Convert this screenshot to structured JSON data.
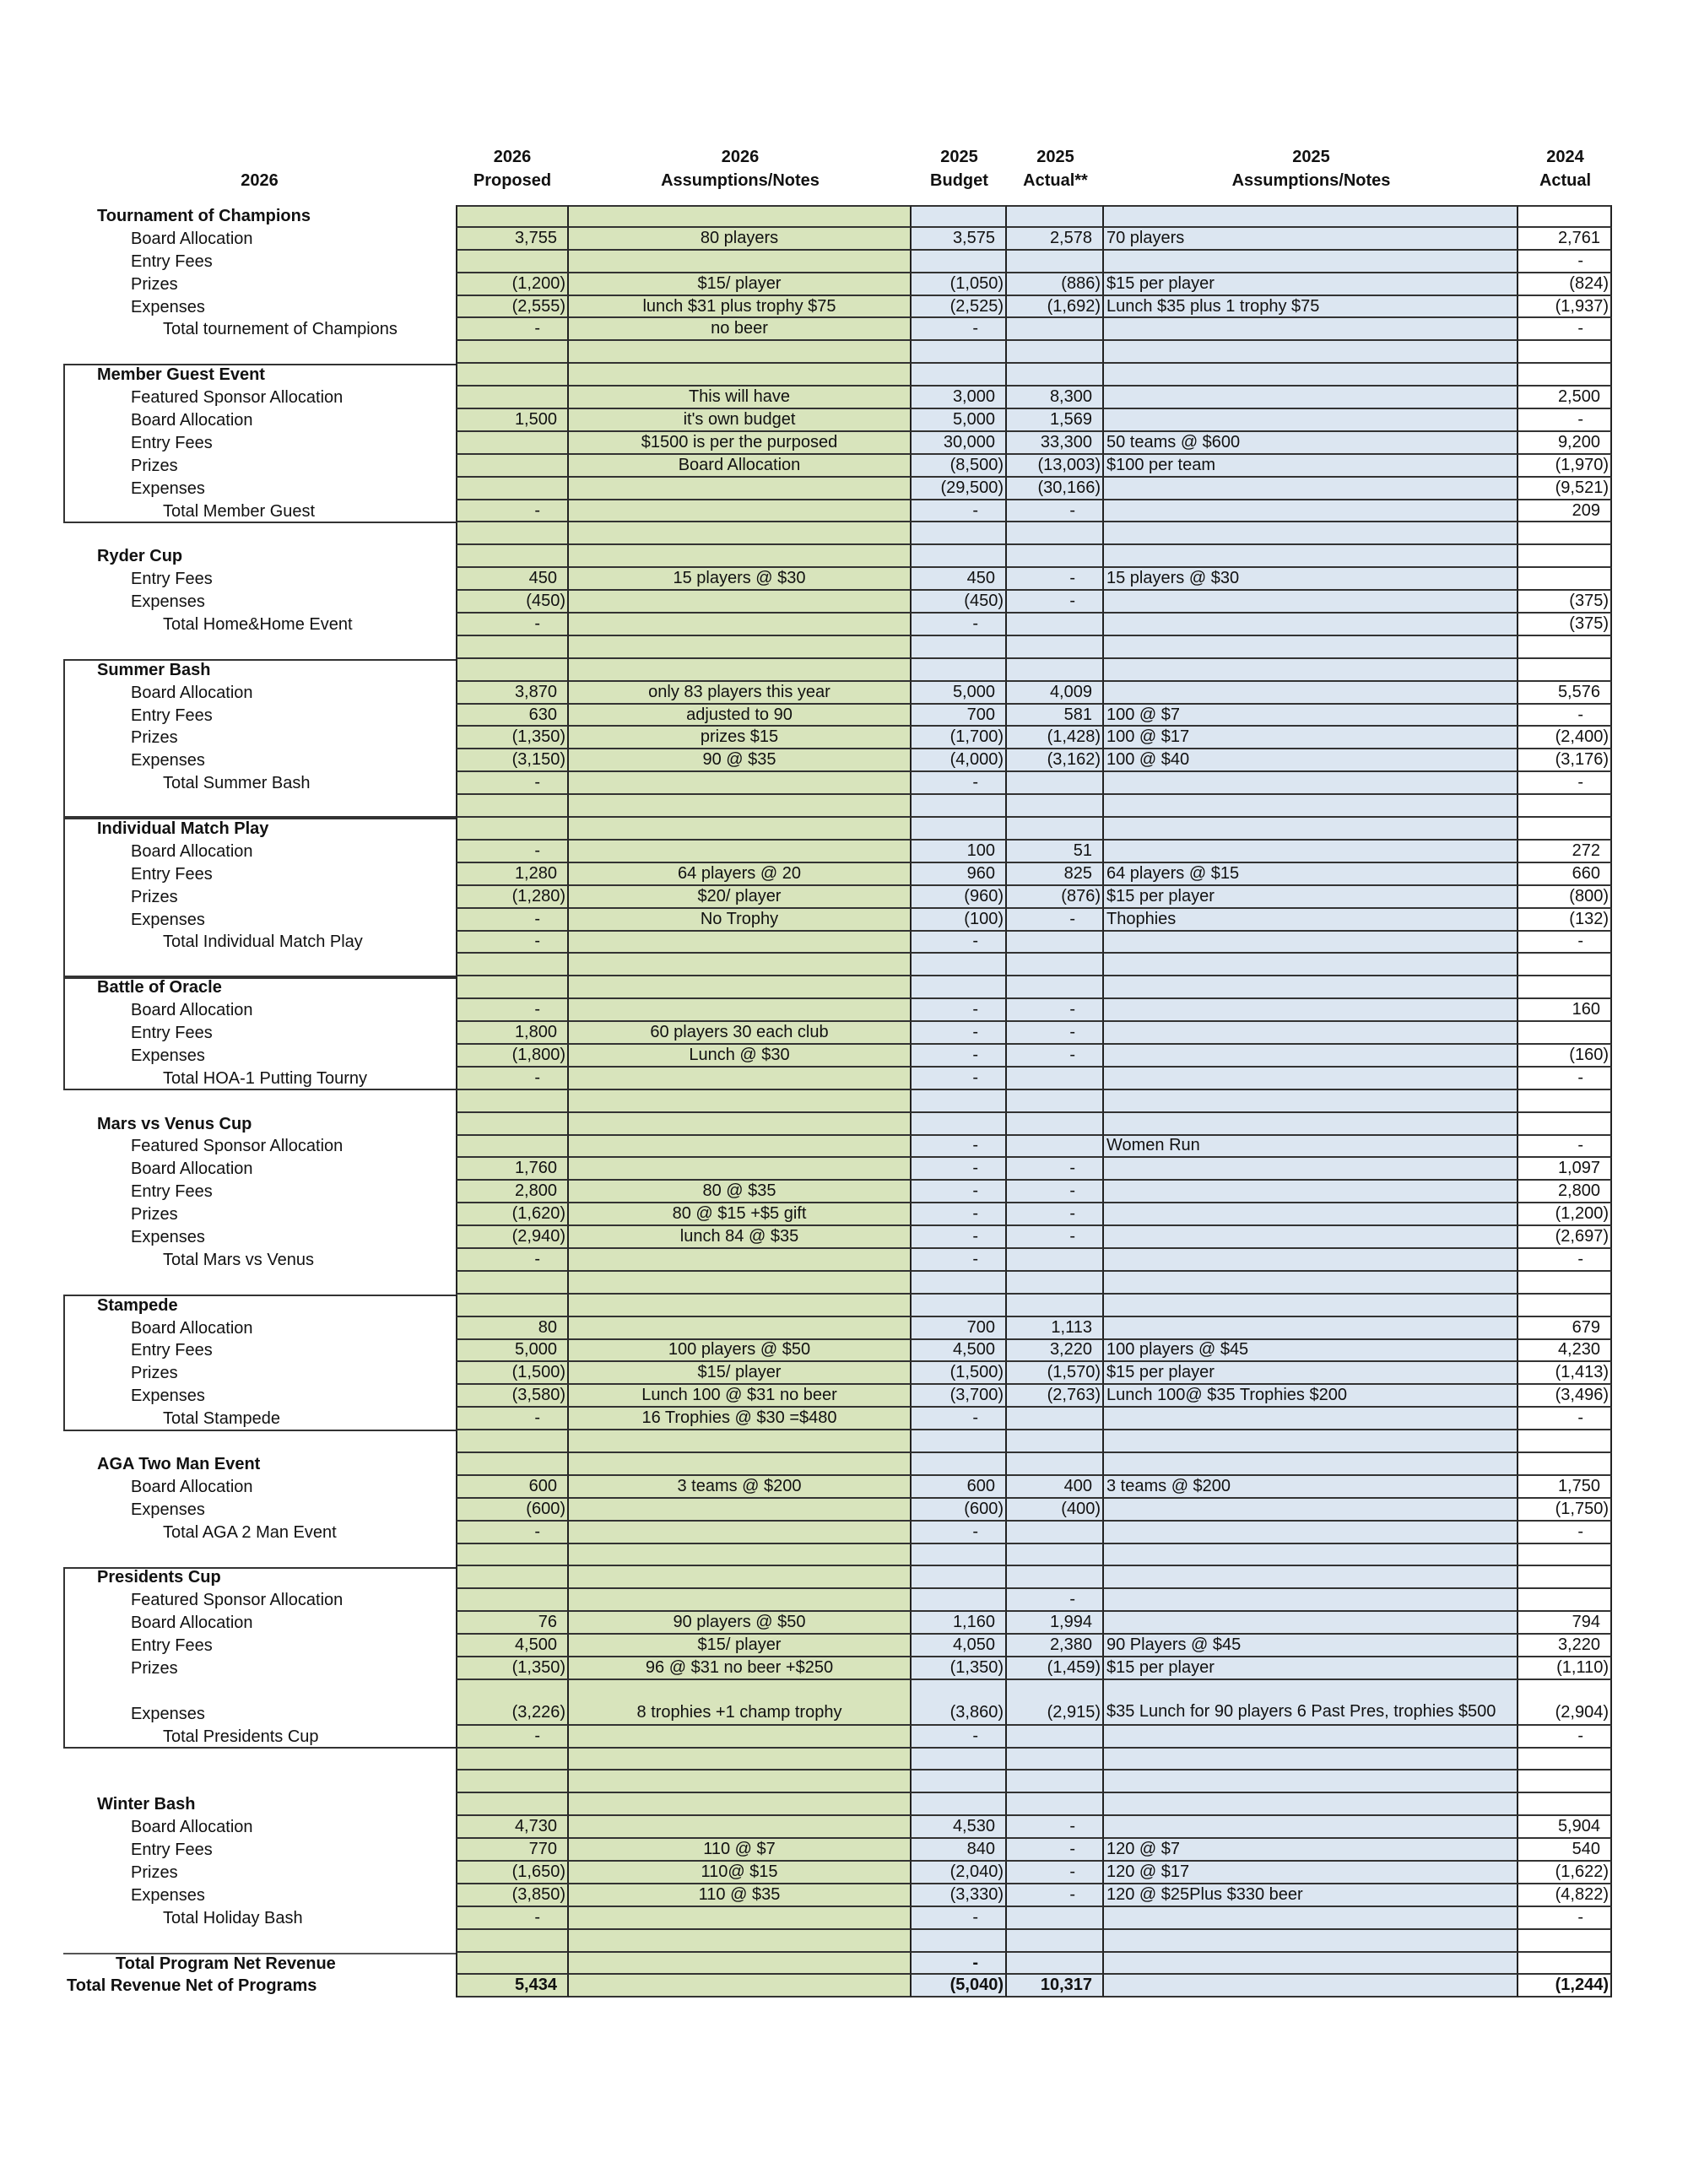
{
  "colors": {
    "proposed_fill": "#d8e4bc",
    "budget_fill": "#dce6f1",
    "actual_2024_fill": "#ffffff"
  },
  "header": [
    {
      "line1": "",
      "line2": "2026"
    },
    {
      "line1": "2026",
      "line2": "Proposed"
    },
    {
      "line1": "2026",
      "line2": "Assumptions/Notes"
    },
    {
      "line1": "2025",
      "line2": "Budget"
    },
    {
      "line1": "2025",
      "line2": "Actual**"
    },
    {
      "line1": "2025",
      "line2": "Assumptions/Notes"
    },
    {
      "line1": "2024",
      "line2": "Actual"
    }
  ],
  "rows": [
    {
      "type": "section",
      "label": "Tournament of Champions"
    },
    {
      "type": "item",
      "label": "Board Allocation",
      "p": "3,755",
      "pn": "80 players",
      "b": "3,575",
      "a": "2,578",
      "an": "70 players",
      "a24": "2,761"
    },
    {
      "type": "item",
      "label": "Entry  Fees",
      "a24": "-"
    },
    {
      "type": "item",
      "label": "Prizes",
      "p": "(1,200)",
      "pn": "$15/ player",
      "b": "(1,050)",
      "a": "(886)",
      "an": "$15 per player",
      "a24": "(824)"
    },
    {
      "type": "item",
      "label": "Expenses",
      "p": "(2,555)",
      "pn": "lunch $31 plus trophy $75",
      "b": "(2,525)",
      "a": "(1,692)",
      "an": "Lunch $35 plus 1 trophy $75",
      "a24": "(1,937)"
    },
    {
      "type": "total",
      "label": "Total tournement of Champions",
      "p": "-",
      "pn": "no beer",
      "b": "-",
      "a24": "-"
    },
    {
      "type": "blank"
    },
    {
      "type": "section",
      "label": "Member Guest Event"
    },
    {
      "type": "item",
      "label": "Featured Sponsor Allocation",
      "pn": "This will have",
      "b": "3,000",
      "a": "8,300",
      "a24": "2,500"
    },
    {
      "type": "item",
      "label": "Board Allocation",
      "p": "1,500",
      "pn": "it's own budget",
      "b": "5,000",
      "a": "1,569",
      "a24": "-"
    },
    {
      "type": "item",
      "label": "Entry  Fees",
      "pn": "$1500 is per the purposed",
      "b": "30,000",
      "a": "33,300",
      "an": "50 teams @ $600",
      "a24": "9,200"
    },
    {
      "type": "item",
      "label": "Prizes",
      "pn": "Board Allocation",
      "b": "(8,500)",
      "a": "(13,003)",
      "an": "$100 per team",
      "a24": "(1,970)"
    },
    {
      "type": "item",
      "label": "Expenses",
      "b": "(29,500)",
      "a": "(30,166)",
      "a24": "(9,521)"
    },
    {
      "type": "total",
      "label": "Total Member Guest",
      "p": "-",
      "b": "-",
      "a": "-",
      "a24": "209"
    },
    {
      "type": "blank"
    },
    {
      "type": "section",
      "label": "Ryder Cup"
    },
    {
      "type": "item",
      "label": "Entry  Fees",
      "p": "450",
      "pn": "15 players @ $30",
      "b": "450",
      "a": "-",
      "an": "15 players @ $30"
    },
    {
      "type": "item",
      "label": "Expenses",
      "p": "(450)",
      "b": "(450)",
      "a": "-",
      "a24": "(375)"
    },
    {
      "type": "total",
      "label": "Total Home&Home Event",
      "p": "-",
      "b": "-",
      "a24": "(375)"
    },
    {
      "type": "blank"
    },
    {
      "type": "section",
      "label": "Summer Bash"
    },
    {
      "type": "item",
      "label": "Board Allocation",
      "p": "3,870",
      "pn": "only 83 players this year",
      "b": "5,000",
      "a": "4,009",
      "a24": "5,576"
    },
    {
      "type": "item",
      "label": "Entry  Fees",
      "p": "630",
      "pn": "adjusted to 90",
      "b": "700",
      "a": "581",
      "an": "100 @ $7",
      "a24": "-"
    },
    {
      "type": "item",
      "label": "Prizes",
      "p": "(1,350)",
      "pn": "prizes $15",
      "b": "(1,700)",
      "a": "(1,428)",
      "an": "100 @ $17",
      "a24": "(2,400)"
    },
    {
      "type": "item",
      "label": "Expenses",
      "p": "(3,150)",
      "pn": "90 @ $35",
      "b": "(4,000)",
      "a": "(3,162)",
      "an": "100 @ $40",
      "a24": "(3,176)"
    },
    {
      "type": "total",
      "label": "Total Summer Bash",
      "p": "-",
      "b": "-",
      "a24": "-"
    },
    {
      "type": "blank"
    },
    {
      "type": "section",
      "label": "Individual Match Play"
    },
    {
      "type": "item",
      "label": "Board Allocation",
      "p": "-",
      "b": "100",
      "a": "51",
      "a24": "272"
    },
    {
      "type": "item",
      "label": "Entry  Fees",
      "p": "1,280",
      "pn": "64 players @ 20",
      "b": "960",
      "a": "825",
      "an": "64 players @ $15",
      "a24": "660"
    },
    {
      "type": "item",
      "label": "Prizes",
      "p": "(1,280)",
      "pn": "$20/ player",
      "b": "(960)",
      "a": "(876)",
      "an": "$15 per player",
      "a24": "(800)"
    },
    {
      "type": "item",
      "label": "Expenses",
      "p": "-",
      "pn": "No Trophy",
      "b": "(100)",
      "a": "-",
      "an": "Thophies",
      "a24": "(132)"
    },
    {
      "type": "total",
      "label": "Total Individual Match Play",
      "p": "-",
      "b": "-",
      "a24": "-"
    },
    {
      "type": "blank"
    },
    {
      "type": "section",
      "label": "Battle of Oracle"
    },
    {
      "type": "item",
      "label": "Board Allocation",
      "p": "-",
      "b": "-",
      "a": "-",
      "a24": "160"
    },
    {
      "type": "item",
      "label": "Entry  Fees",
      "p": "1,800",
      "pn": "60 players 30 each club",
      "b": "-",
      "a": "-"
    },
    {
      "type": "item",
      "label": "Expenses",
      "p": "(1,800)",
      "pn": "Lunch @ $30",
      "b": "-",
      "a": "-",
      "a24": "(160)"
    },
    {
      "type": "total",
      "label": "Total HOA-1 Putting Tourny",
      "p": "-",
      "b": "-",
      "a24": "-"
    },
    {
      "type": "blank"
    },
    {
      "type": "section",
      "label": "Mars vs Venus Cup"
    },
    {
      "type": "item",
      "label": "Featured Sponsor Allocation",
      "b": "-",
      "an": "Women Run",
      "a24": "-"
    },
    {
      "type": "item",
      "label": "Board Allocation",
      "p": "1,760",
      "b": "-",
      "a": "-",
      "a24": "1,097"
    },
    {
      "type": "item",
      "label": "Entry  Fees",
      "p": "2,800",
      "pn": "80 @ $35",
      "b": "-",
      "a": "-",
      "a24": "2,800"
    },
    {
      "type": "item",
      "label": "Prizes",
      "p": "(1,620)",
      "pn": "80 @ $15 +$5 gift",
      "b": "-",
      "a": "-",
      "a24": "(1,200)"
    },
    {
      "type": "item",
      "label": "Expenses",
      "p": "(2,940)",
      "pn": "lunch 84 @ $35",
      "b": "-",
      "a": "-",
      "a24": "(2,697)"
    },
    {
      "type": "total",
      "label": "Total Mars vs Venus",
      "p": "-",
      "b": "-",
      "a24": "-"
    },
    {
      "type": "blank"
    },
    {
      "type": "section",
      "label": "Stampede"
    },
    {
      "type": "item",
      "label": "Board Allocation",
      "p": "80",
      "b": "700",
      "a": "1,113",
      "a24": "679"
    },
    {
      "type": "item",
      "label": "Entry  Fees",
      "p": "5,000",
      "pn": "100 players @ $50",
      "b": "4,500",
      "a": "3,220",
      "an": "100 players @ $45",
      "a24": "4,230"
    },
    {
      "type": "item",
      "label": "Prizes",
      "p": "(1,500)",
      "pn": "$15/ player",
      "b": "(1,500)",
      "a": "(1,570)",
      "an": "$15 per player",
      "a24": "(1,413)"
    },
    {
      "type": "item",
      "label": "Expenses",
      "p": "(3,580)",
      "pn": "Lunch 100 @ $31 no beer",
      "b": "(3,700)",
      "a": "(2,763)",
      "an": "Lunch 100@ $35 Trophies $200",
      "a24": "(3,496)"
    },
    {
      "type": "total",
      "label": "Total Stampede",
      "p": "-",
      "pn": "16 Trophies @ $30 =$480",
      "b": "-",
      "a24": "-"
    },
    {
      "type": "blank"
    },
    {
      "type": "section",
      "label": "AGA Two Man Event"
    },
    {
      "type": "item",
      "label": "Board Allocation",
      "p": "600",
      "pn": "3 teams @ $200",
      "b": "600",
      "a": "400",
      "an": "3 teams @ $200",
      "a24": "1,750"
    },
    {
      "type": "item",
      "label": "Expenses",
      "p": "(600)",
      "b": "(600)",
      "a": "(400)",
      "a24": "(1,750)"
    },
    {
      "type": "total",
      "label": "Total AGA 2 Man Event",
      "p": "-",
      "b": "-",
      "a24": "-"
    },
    {
      "type": "blank"
    },
    {
      "type": "section",
      "label": "Presidents Cup"
    },
    {
      "type": "item",
      "label": "Featured Sponsor Allocation",
      "a": "-"
    },
    {
      "type": "item",
      "label": "Board Allocation",
      "p": "76",
      "pn": "90 players @ $50",
      "b": "1,160",
      "a": "1,994",
      "a24": "794"
    },
    {
      "type": "item",
      "label": "Entry  Fees",
      "p": "4,500",
      "pn": "$15/ player",
      "b": "4,050",
      "a": "2,380",
      "an": "90 Players @ $45",
      "a24": "3,220"
    },
    {
      "type": "item",
      "label": "Prizes",
      "p": "(1,350)",
      "pn": "96 @ $31 no beer +$250",
      "b": "(1,350)",
      "a": "(1,459)",
      "an": "$15 per player",
      "a24": "(1,110)"
    },
    {
      "type": "item",
      "tall": true,
      "label": "Expenses",
      "p": "(3,226)",
      "pn": "8 trophies +1 champ trophy",
      "b": "(3,860)",
      "a": "(2,915)",
      "an": "$35 Lunch for 90 players 6 Past Pres, trophies $500",
      "a24": "(2,904)"
    },
    {
      "type": "total",
      "label": "Total Presidents Cup",
      "p": "-",
      "b": "-",
      "a24": "-"
    },
    {
      "type": "blank"
    },
    {
      "type": "blank"
    },
    {
      "type": "section",
      "label": "Winter Bash"
    },
    {
      "type": "item",
      "label": "Board Allocation",
      "p": "4,730",
      "b": "4,530",
      "a": "-",
      "a24": "5,904"
    },
    {
      "type": "item",
      "label": "Entry  Fees",
      "p": "770",
      "pn": "110 @ $7",
      "b": "840",
      "a": "-",
      "an": "120 @ $7",
      "a24": "540"
    },
    {
      "type": "item",
      "label": "Prizes",
      "p": "(1,650)",
      "pn": "110@ $15",
      "b": "(2,040)",
      "a": "-",
      "an": "120 @ $17",
      "a24": "(1,622)"
    },
    {
      "type": "item",
      "label": "Expenses",
      "p": "(3,850)",
      "pn": "110 @ $35",
      "b": "(3,330)",
      "a": "-",
      "an": "120 @ $25Plus $330 beer",
      "a24": "(4,822)"
    },
    {
      "type": "total",
      "label": "Total Holiday Bash",
      "p": "-",
      "b": "-",
      "a24": "-"
    },
    {
      "type": "blank"
    },
    {
      "type": "grand1",
      "label": "Total Program Net Revenue",
      "b": "-"
    },
    {
      "type": "grand2",
      "label": "Total Revenue Net of Programs",
      "p": "5,434",
      "b": "(5,040)",
      "a": "10,317",
      "a24": "(1,244)"
    }
  ]
}
